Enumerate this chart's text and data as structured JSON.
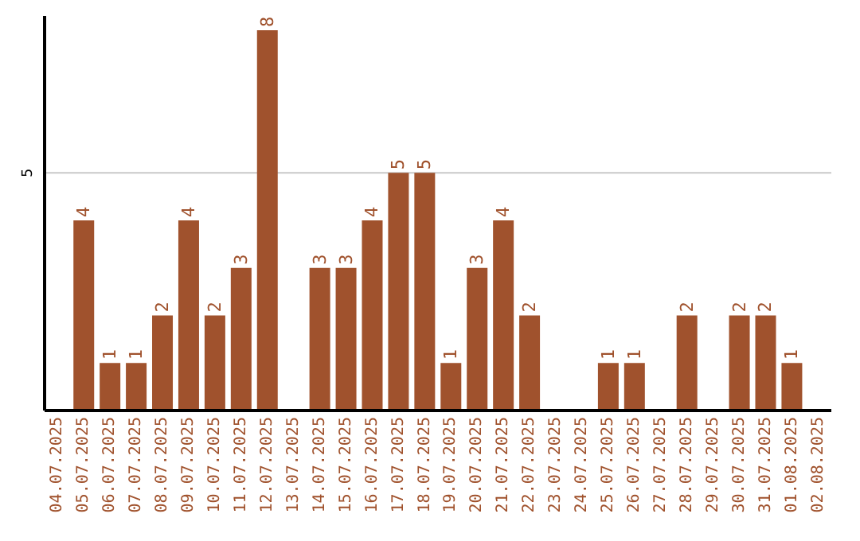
{
  "chart_data": {
    "type": "bar",
    "categories": [
      "04.07.2025",
      "05.07.2025",
      "06.07.2025",
      "07.07.2025",
      "08.07.2025",
      "09.07.2025",
      "10.07.2025",
      "11.07.2025",
      "12.07.2025",
      "13.07.2025",
      "14.07.2025",
      "15.07.2025",
      "16.07.2025",
      "17.07.2025",
      "18.07.2025",
      "19.07.2025",
      "20.07.2025",
      "21.07.2025",
      "22.07.2025",
      "23.07.2025",
      "24.07.2025",
      "25.07.2025",
      "26.07.2025",
      "27.07.2025",
      "28.07.2025",
      "29.07.2025",
      "30.07.2025",
      "31.07.2025",
      "01.08.2025",
      "02.08.2025"
    ],
    "values": [
      null,
      4,
      1,
      1,
      2,
      4,
      2,
      3,
      8,
      null,
      3,
      3,
      4,
      5,
      5,
      1,
      3,
      4,
      2,
      null,
      null,
      1,
      1,
      null,
      2,
      null,
      2,
      2,
      1,
      null
    ],
    "color": "#a0522d",
    "ylim": [
      0,
      8.3
    ],
    "yticks": [
      5
    ],
    "grid": "y",
    "data_labels": true
  }
}
